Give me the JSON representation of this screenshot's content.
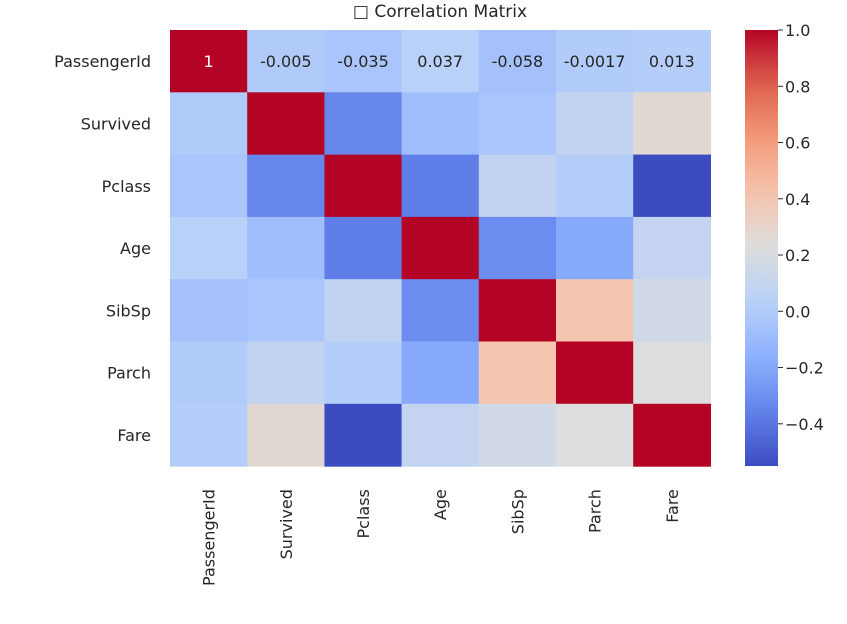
{
  "chart_data": {
    "type": "heatmap",
    "title": "□ Correlation Matrix",
    "xlabel": "",
    "ylabel": "",
    "colormap": "coolwarm",
    "vmin": -0.55,
    "vmax": 1.0,
    "row_labels": [
      "PassengerId",
      "Survived",
      "Pclass",
      "Age",
      "SibSp",
      "Parch",
      "Fare"
    ],
    "col_labels": [
      "PassengerId",
      "Survived",
      "Pclass",
      "Age",
      "SibSp",
      "Parch",
      "Fare"
    ],
    "values": [
      [
        1.0,
        -0.005,
        -0.035,
        0.037,
        -0.058,
        -0.0017,
        0.013
      ],
      [
        -0.005,
        1.0,
        -0.34,
        -0.077,
        -0.035,
        0.082,
        0.26
      ],
      [
        -0.035,
        -0.34,
        1.0,
        -0.37,
        0.083,
        0.018,
        -0.55
      ],
      [
        0.037,
        -0.077,
        -0.37,
        1.0,
        -0.31,
        -0.19,
        0.096
      ],
      [
        -0.058,
        -0.035,
        0.083,
        -0.31,
        1.0,
        0.41,
        0.16
      ],
      [
        -0.0017,
        0.082,
        0.018,
        -0.19,
        0.41,
        1.0,
        0.22
      ],
      [
        0.013,
        0.26,
        -0.55,
        0.096,
        0.16,
        0.22,
        1.0
      ]
    ],
    "annotations": [
      [
        "1",
        "-0.005",
        "-0.035",
        "0.037",
        "-0.058",
        "-0.0017",
        "0.013"
      ],
      [
        "",
        "",
        "",
        "",
        "",
        "",
        ""
      ],
      [
        "",
        "",
        "",
        "",
        "",
        "",
        ""
      ],
      [
        "",
        "",
        "",
        "",
        "",
        "",
        ""
      ],
      [
        "",
        "",
        "",
        "",
        "",
        "",
        ""
      ],
      [
        "",
        "",
        "",
        "",
        "",
        "",
        ""
      ],
      [
        "",
        "",
        "",
        "",
        "",
        "",
        ""
      ]
    ],
    "colorbar_ticks": [
      1.0,
      0.8,
      0.6,
      0.4,
      0.2,
      0.0,
      -0.2,
      -0.4
    ],
    "colorbar_tick_labels": [
      "1.0",
      "0.8",
      "0.6",
      "0.4",
      "0.2",
      "0.0",
      "−0.2",
      "−0.4"
    ]
  }
}
